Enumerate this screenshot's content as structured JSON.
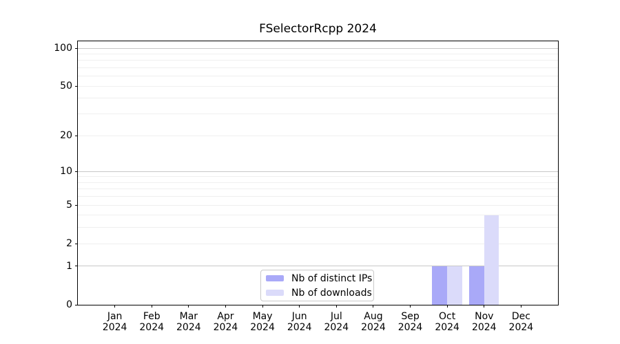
{
  "chart_data": {
    "type": "bar",
    "title": "FSelectorRcpp 2024",
    "months": [
      "Jan",
      "Feb",
      "Mar",
      "Apr",
      "May",
      "Jun",
      "Jul",
      "Aug",
      "Sep",
      "Oct",
      "Nov",
      "Dec"
    ],
    "year_label": "2024",
    "categories": [
      "Jan 2024",
      "Feb 2024",
      "Mar 2024",
      "Apr 2024",
      "May 2024",
      "Jun 2024",
      "Jul 2024",
      "Aug 2024",
      "Sep 2024",
      "Oct 2024",
      "Nov 2024",
      "Dec 2024"
    ],
    "series": [
      {
        "name": "Nb of distinct IPs",
        "color": "#a9a9f8",
        "values": [
          0,
          0,
          0,
          0,
          0,
          0,
          0,
          0,
          0,
          1,
          1,
          0
        ]
      },
      {
        "name": "Nb of downloads",
        "color": "#dbdbfa",
        "values": [
          0,
          0,
          0,
          0,
          0,
          0,
          0,
          0,
          0,
          1,
          4,
          0
        ]
      }
    ],
    "y_axis": {
      "scale": "log1p",
      "tick_labels": [
        "0",
        "1",
        "2",
        "5",
        "10",
        "20",
        "50",
        "100"
      ],
      "tick_values": [
        0,
        1,
        2,
        5,
        10,
        20,
        50,
        100
      ],
      "minor_gridlines": [
        2,
        3,
        4,
        5,
        6,
        7,
        8,
        9,
        20,
        30,
        40,
        50,
        60,
        70,
        80,
        90
      ],
      "major_gridlines": [
        1,
        10,
        100
      ],
      "range_top": 113
    },
    "legend": {
      "position": "lower center"
    },
    "grid": "horizontal",
    "colors": {
      "minor_grid": "#efefef",
      "major_grid": "#c8c8c8",
      "axis": "#000000",
      "background": "#ffffff",
      "legend_border": "#c8c8c8",
      "text": "#000000"
    }
  }
}
